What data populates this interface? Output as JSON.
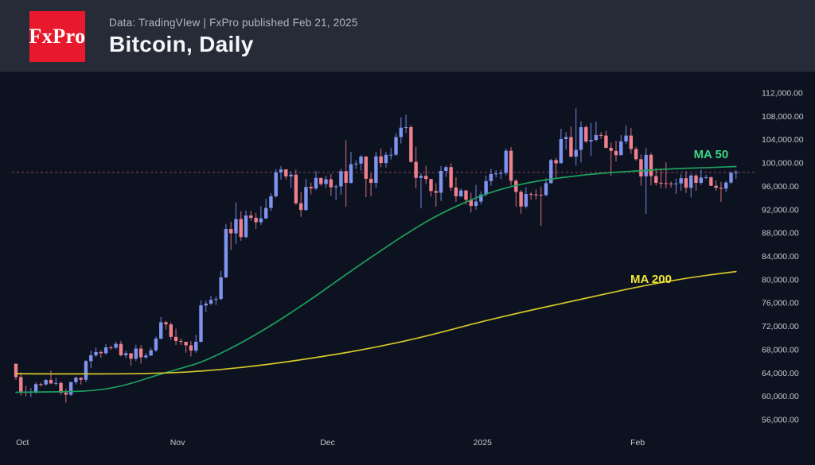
{
  "header": {
    "logo_text": "FxPro",
    "meta": "Data: TradingVIew | FxPro published Feb 21, 2025",
    "title": "Bitcoin, Daily"
  },
  "colors": {
    "background": "#0d1220",
    "header_bg": "#272b37",
    "logo_bg": "#e8192c",
    "logo_text": "#ffffff",
    "title_text": "#f4f6f9",
    "meta_text": "#b2b6c0",
    "axis_text": "#c3c8d2",
    "candle_up": "#7e94ee",
    "candle_up_wick": "#7488e0",
    "candle_down": "#f0808c",
    "candle_down_wick": "#d76f7e",
    "ma50": "#1ea05e",
    "ma50_label": "#3cd687",
    "ma200": "#d4c62b",
    "ma200_label": "#f2e635",
    "price_line": "#4a2e3a"
  },
  "chart_data": {
    "type": "candlestick",
    "title": "Bitcoin, Daily",
    "interval": "daily",
    "start_date": "2024-09-30",
    "end_date": "2025-02-21",
    "last_price_line": 98400,
    "y_axis": {
      "side": "right",
      "tick_step": 4000,
      "range": [
        56000,
        112000
      ],
      "ticks": [
        "112,000.00",
        "108,000.00",
        "104,000.00",
        "100,000.00",
        "96,000.00",
        "92,000.00",
        "88,000.00",
        "84,000.00",
        "80,000.00",
        "76,000.00",
        "72,000.00",
        "68,000.00",
        "64,000.00",
        "60,000.00",
        "56,000.00"
      ]
    },
    "x_axis": {
      "ticks": [
        {
          "label": "Oct",
          "day": 1
        },
        {
          "label": "Nov",
          "day": 32
        },
        {
          "label": "Dec",
          "day": 62
        },
        {
          "label": "2025",
          "day": 93
        },
        {
          "label": "Feb",
          "day": 124
        }
      ]
    },
    "annotations": [
      {
        "text": "MA 50",
        "day": 139,
        "price": 100830,
        "color_key": "ma50_label"
      },
      {
        "text": "MA 200",
        "day": 127,
        "price": 79450,
        "color_key": "ma200_label"
      }
    ],
    "series": [
      {
        "name": "BTC/USD daily candles (open, high, low, close)",
        "kind": "ohlc",
        "ohlc": [
          [
            65600,
            65650,
            62850,
            63300
          ],
          [
            63300,
            64100,
            60150,
            60840
          ],
          [
            60840,
            61800,
            60000,
            60650
          ],
          [
            60650,
            61450,
            59850,
            60750
          ],
          [
            60750,
            62450,
            60460,
            62100
          ],
          [
            62100,
            62370,
            61690,
            62050
          ],
          [
            62050,
            62980,
            61840,
            62820
          ],
          [
            62820,
            64450,
            62100,
            62220
          ],
          [
            62220,
            63200,
            61860,
            62300
          ],
          [
            62300,
            62550,
            60300,
            60630
          ],
          [
            60630,
            61300,
            58950,
            60300
          ],
          [
            60300,
            62500,
            60090,
            62450
          ],
          [
            62450,
            63400,
            62030,
            63200
          ],
          [
            63200,
            63290,
            62050,
            62850
          ],
          [
            62850,
            66250,
            62450,
            66050
          ],
          [
            66050,
            67850,
            64850,
            67050
          ],
          [
            67050,
            68400,
            66750,
            67600
          ],
          [
            67600,
            67940,
            66650,
            67400
          ],
          [
            67400,
            68970,
            67150,
            68400
          ],
          [
            68400,
            68690,
            68010,
            68350
          ],
          [
            68350,
            69400,
            68100,
            69000
          ],
          [
            69000,
            69520,
            66840,
            67050
          ],
          [
            67050,
            67810,
            66560,
            67400
          ],
          [
            67400,
            67430,
            65260,
            66450
          ],
          [
            66450,
            68850,
            66050,
            68200
          ],
          [
            68200,
            68780,
            65600,
            66700
          ],
          [
            66700,
            67450,
            66400,
            67000
          ],
          [
            67000,
            68340,
            66900,
            67900
          ],
          [
            67900,
            70250,
            67600,
            69900
          ],
          [
            69900,
            73600,
            69750,
            72700
          ],
          [
            72700,
            72950,
            71450,
            72350
          ],
          [
            72350,
            72700,
            69700,
            70200
          ],
          [
            70200,
            71600,
            68800,
            69500
          ],
          [
            69500,
            69910,
            68820,
            69350
          ],
          [
            69350,
            69390,
            67480,
            68750
          ],
          [
            68750,
            69500,
            66830,
            67850
          ],
          [
            67850,
            70550,
            67480,
            69350
          ],
          [
            69350,
            76450,
            69280,
            75600
          ],
          [
            75600,
            76400,
            74450,
            75900
          ],
          [
            75900,
            77250,
            75590,
            76550
          ],
          [
            76550,
            77130,
            75690,
            76700
          ],
          [
            76700,
            81500,
            76500,
            80400
          ],
          [
            80400,
            89550,
            80250,
            88700
          ],
          [
            88700,
            89940,
            85100,
            87950
          ],
          [
            87950,
            93250,
            86150,
            90400
          ],
          [
            90400,
            91750,
            86670,
            87300
          ],
          [
            87300,
            91850,
            87100,
            91000
          ],
          [
            91000,
            91780,
            90090,
            90600
          ],
          [
            90600,
            91450,
            88720,
            89850
          ],
          [
            89850,
            92600,
            89380,
            90500
          ],
          [
            90500,
            93900,
            90400,
            92300
          ],
          [
            92300,
            94830,
            91780,
            94300
          ],
          [
            94300,
            98950,
            94040,
            98400
          ],
          [
            98400,
            99500,
            97160,
            98900
          ],
          [
            98900,
            98960,
            97170,
            97700
          ],
          [
            97700,
            98560,
            95750,
            98000
          ],
          [
            98000,
            98870,
            92830,
            93100
          ],
          [
            93100,
            94980,
            90790,
            91950
          ],
          [
            91950,
            97270,
            91800,
            95900
          ],
          [
            95900,
            96600,
            94640,
            95650
          ],
          [
            95650,
            98620,
            95370,
            97450
          ],
          [
            97450,
            97460,
            96080,
            96400
          ],
          [
            96400,
            97830,
            95700,
            97200
          ],
          [
            97200,
            98130,
            94400,
            95850
          ],
          [
            95850,
            96300,
            93640,
            96000
          ],
          [
            96000,
            99000,
            94590,
            98600
          ],
          [
            98600,
            103900,
            92500,
            96600
          ],
          [
            96600,
            101900,
            96440,
            99800
          ],
          [
            99800,
            100440,
            98970,
            99900
          ],
          [
            99900,
            101350,
            98700,
            101100
          ],
          [
            101100,
            101200,
            94150,
            97300
          ],
          [
            97300,
            98270,
            94300,
            96600
          ],
          [
            96600,
            101880,
            95650,
            101150
          ],
          [
            101150,
            102500,
            99300,
            100000
          ],
          [
            100000,
            101890,
            99210,
            101400
          ],
          [
            101400,
            102650,
            100600,
            101420
          ],
          [
            101420,
            105120,
            101230,
            104450
          ],
          [
            104450,
            107790,
            103330,
            106050
          ],
          [
            106050,
            108270,
            105150,
            106150
          ],
          [
            106150,
            106500,
            100050,
            100200
          ],
          [
            100200,
            102800,
            95670,
            97450
          ],
          [
            97450,
            98230,
            92230,
            97800
          ],
          [
            97800,
            99540,
            96400,
            97250
          ],
          [
            97250,
            97290,
            94250,
            95200
          ],
          [
            95200,
            96540,
            92520,
            94900
          ],
          [
            94900,
            99470,
            93500,
            98650
          ],
          [
            98650,
            99550,
            97600,
            99300
          ],
          [
            99300,
            99960,
            95230,
            95800
          ],
          [
            95800,
            97550,
            93350,
            94300
          ],
          [
            94300,
            95600,
            94130,
            95300
          ],
          [
            95300,
            95340,
            92880,
            93700
          ],
          [
            93700,
            94900,
            91530,
            92650
          ],
          [
            92650,
            96250,
            92000,
            93400
          ],
          [
            93400,
            95150,
            92890,
            94600
          ],
          [
            94600,
            97840,
            94270,
            96900
          ],
          [
            96900,
            98980,
            96100,
            98100
          ],
          [
            98100,
            98770,
            97540,
            98200
          ],
          [
            98200,
            98820,
            97280,
            98300
          ],
          [
            98300,
            102480,
            97920,
            102100
          ],
          [
            102100,
            102730,
            96160,
            96950
          ],
          [
            96950,
            97260,
            92510,
            95050
          ],
          [
            95050,
            95380,
            91300,
            92550
          ],
          [
            92550,
            95840,
            92210,
            94700
          ],
          [
            94700,
            95050,
            93680,
            94600
          ],
          [
            94600,
            95450,
            93770,
            94550
          ],
          [
            94550,
            95940,
            89250,
            94500
          ],
          [
            94500,
            97370,
            94300,
            96550
          ],
          [
            96550,
            100700,
            96450,
            100500
          ],
          [
            100500,
            100870,
            97350,
            99950
          ],
          [
            99950,
            105870,
            99940,
            104100
          ],
          [
            104100,
            105280,
            102280,
            104450
          ],
          [
            104450,
            106270,
            100950,
            101100
          ],
          [
            101100,
            109350,
            99550,
            102250
          ],
          [
            102250,
            107150,
            100100,
            106150
          ],
          [
            106150,
            106450,
            103400,
            103700
          ],
          [
            103700,
            106850,
            101250,
            103960
          ],
          [
            103960,
            107120,
            103700,
            104800
          ],
          [
            104800,
            105300,
            104120,
            104700
          ],
          [
            104700,
            105500,
            102520,
            102600
          ],
          [
            102600,
            103500,
            97780,
            102080
          ],
          [
            102080,
            103800,
            100280,
            101340
          ],
          [
            101340,
            104800,
            101300,
            103700
          ],
          [
            103700,
            106460,
            103300,
            104700
          ],
          [
            104700,
            106010,
            101560,
            102400
          ],
          [
            102400,
            102780,
            100400,
            100650
          ],
          [
            100650,
            101440,
            96150,
            97700
          ],
          [
            97700,
            102540,
            91250,
            101400
          ],
          [
            101400,
            101740,
            96150,
            97750
          ],
          [
            97750,
            99150,
            96150,
            96600
          ],
          [
            96600,
            99120,
            95680,
            96550
          ],
          [
            96550,
            100150,
            95620,
            96500
          ],
          [
            96500,
            96850,
            95790,
            96450
          ],
          [
            96450,
            97330,
            94710,
            96500
          ],
          [
            96500,
            98100,
            95250,
            97400
          ],
          [
            97400,
            98580,
            94880,
            95750
          ],
          [
            95750,
            98120,
            94090,
            97850
          ],
          [
            97850,
            98080,
            95230,
            96600
          ],
          [
            96600,
            98840,
            96250,
            97500
          ],
          [
            97500,
            97970,
            97270,
            97550
          ],
          [
            97550,
            97700,
            96050,
            96100
          ],
          [
            96100,
            97050,
            95230,
            95750
          ],
          [
            95750,
            96750,
            93350,
            95600
          ],
          [
            95600,
            96900,
            95030,
            96650
          ],
          [
            96650,
            98550,
            96420,
            98300
          ],
          [
            98300,
            98800,
            97250,
            98400
          ]
        ]
      },
      {
        "name": "MA 50",
        "kind": "line",
        "color_key": "ma50",
        "points": [
          [
            0,
            60700
          ],
          [
            8,
            60750
          ],
          [
            16,
            60960
          ],
          [
            22,
            61900
          ],
          [
            28,
            63600
          ],
          [
            33,
            64800
          ],
          [
            38,
            66100
          ],
          [
            47,
            70000
          ],
          [
            57,
            75400
          ],
          [
            66,
            80900
          ],
          [
            73,
            85000
          ],
          [
            79,
            88400
          ],
          [
            85,
            91400
          ],
          [
            92,
            94100
          ],
          [
            98,
            95800
          ],
          [
            104,
            96900
          ],
          [
            111,
            97700
          ],
          [
            117,
            98250
          ],
          [
            124,
            98650
          ],
          [
            132,
            99050
          ],
          [
            138,
            99200
          ],
          [
            144,
            99400
          ]
        ]
      },
      {
        "name": "MA 200",
        "kind": "line",
        "color_key": "ma200",
        "points": [
          [
            0,
            63900
          ],
          [
            15,
            63820
          ],
          [
            30,
            63950
          ],
          [
            40,
            64500
          ],
          [
            50,
            65400
          ],
          [
            62,
            66900
          ],
          [
            72,
            68400
          ],
          [
            82,
            70300
          ],
          [
            93,
            72800
          ],
          [
            101,
            74400
          ],
          [
            109,
            75900
          ],
          [
            117,
            77400
          ],
          [
            124,
            78700
          ],
          [
            134,
            80300
          ],
          [
            144,
            81400
          ]
        ]
      }
    ]
  }
}
